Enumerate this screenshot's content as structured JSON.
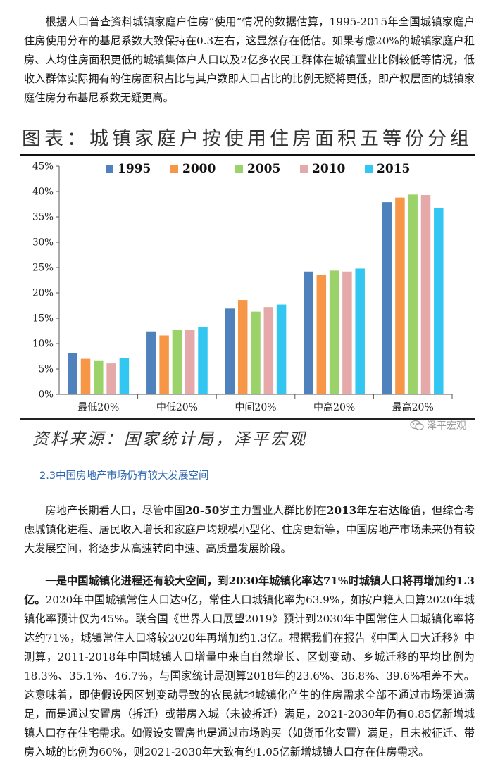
{
  "intro": {
    "text": "根据人口普查资料城镇家庭户住房“使用”情况的数据估算，1995-2015年全国城镇家庭户住房使用分布的基尼系数大致保持在0.3左右，这显然存在低估。如果考虑20%的城镇家庭户租房、人均住房面积更低的城镇集体户人口以及2亿多农民工群体在城镇置业比例较低等情况，低收入群体实际拥有的住房面积占比与其户数即人口占比的比例无疑将更低，即产权层面的城镇家庭住房分布基尼系数无疑更高。"
  },
  "chart": {
    "title": "图表：城镇家庭户按使用住房面积五等份分组",
    "source": "资料来源：国家统计局，泽平宏观",
    "watermark": "泽平宏观"
  },
  "chart_data": {
    "type": "bar",
    "categories": [
      "最低20%",
      "中低20%",
      "中间20%",
      "中高20%",
      "最高20%"
    ],
    "series": [
      {
        "name": "1995",
        "color": "#4f81bd",
        "values": [
          8.1,
          12.4,
          16.9,
          24.2,
          37.9
        ]
      },
      {
        "name": "2000",
        "color": "#f79646",
        "values": [
          7.0,
          11.6,
          18.6,
          23.5,
          38.8
        ]
      },
      {
        "name": "2005",
        "color": "#9bd36a",
        "values": [
          6.7,
          12.7,
          16.3,
          24.4,
          39.4
        ]
      },
      {
        "name": "2010",
        "color": "#e6a9a9",
        "values": [
          6.1,
          12.7,
          17.2,
          24.2,
          39.3
        ]
      },
      {
        "name": "2015",
        "color": "#33c6f0",
        "values": [
          7.1,
          13.3,
          17.7,
          24.8,
          36.8
        ]
      }
    ],
    "yticks": [
      "0%",
      "5%",
      "10%",
      "15%",
      "20%",
      "25%",
      "30%",
      "35%",
      "40%",
      "45%"
    ],
    "ylim": [
      0,
      45
    ],
    "legend_position": "top",
    "grid": false
  },
  "section": {
    "heading": "2.3中国房地产市场仍有较大发展空间"
  },
  "para2": {
    "t1": "房地产长期看人口，尽管中国",
    "b1": "20-50",
    "t2": "岁主力置业人群比例在",
    "b2": "2013",
    "t3": "年左右达峰值，但综合考虑城镇化进程、居民收入增长和家庭户均规模小型化、住房更新等，中国房地产市场未来仍有较大发展空间，将逐步从高速转向中速、高质量发展阶段。"
  },
  "para3": {
    "lead1": "一是中国城镇化进程还有较大空间，到",
    "lead_b1": "2030",
    "lead2": "年城镇化率达",
    "lead_b2": "71%",
    "lead3": "时城镇人口将再增加约",
    "lead_b3": "1.3",
    "lead4": "亿。",
    "body": "2020年中国城镇常住人口达9亿，常住人口城镇化率为63.9%，如按户籍人口算2020年城镇化率预计仅为45%。联合国《世界人口展望2019》预计到2030年中国常住人口城镇化率将达约71%，城镇常住人口将较2020年再增加约1.3亿。根据我们在报告《中国人口大迁移》中测算，2011-2018年中国城镇人口增量中来自自然增长、区划变动、乡城迁移的平均比例为18.3%、35.1%、46.7%，与国家统计局测算2018年的23.6%、36.8%、39.6%相差不大。这意味着，即使假设因区划变动导致的农民就地城镇化产生的住房需求全部不通过市场渠道满足，而是通过安置房（拆迁）或带房入城（未被拆迁）满足，2021-2030年仍有0.85亿新增城镇人口存在住宅需求。如假设安置房也是通过市场购买（如货币化安置）满足，且未被征迁、带房入城的比例为60%，则2021-2030年大致有约1.05亿新增城镇人口存在住房需求。"
  }
}
